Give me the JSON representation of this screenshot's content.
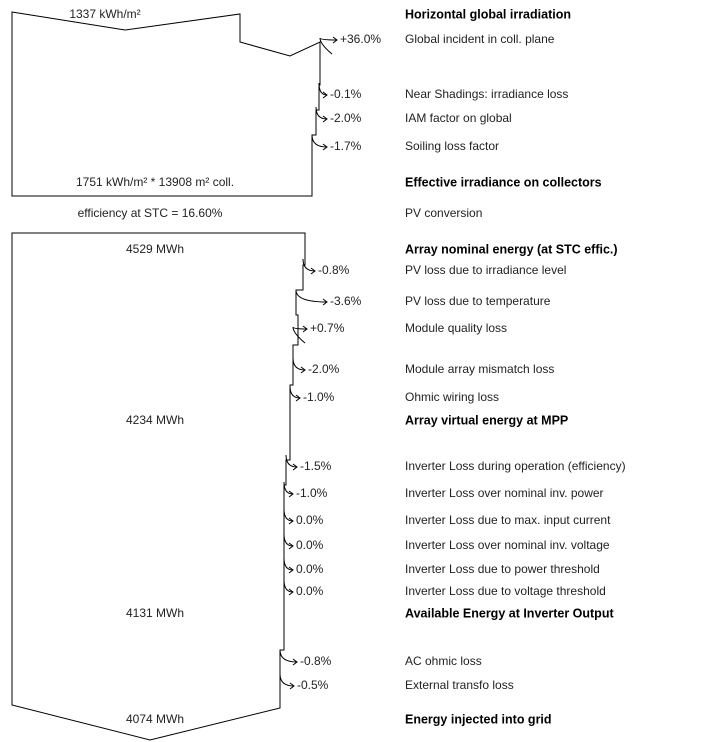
{
  "rows": [
    {
      "value": "1337 kWh/m²",
      "label": "Horizontal global irradiation"
    },
    {
      "value": "+36.0%",
      "label": "Global incident in coll. plane"
    },
    {
      "value": "-0.1%",
      "label": "Near Shadings: irradiance loss"
    },
    {
      "value": "-2.0%",
      "label": "IAM factor on global"
    },
    {
      "value": "-1.7%",
      "label": "Soiling loss factor"
    },
    {
      "value": "1751 kWh/m² * 13908 m² coll.",
      "label": "Effective irradiance on collectors"
    },
    {
      "value": "efficiency at STC = 16.60%",
      "label": "PV conversion"
    },
    {
      "value": "4529 MWh",
      "label": "Array nominal energy (at STC effic.)"
    },
    {
      "value": "-0.8%",
      "label": "PV loss due to irradiance level"
    },
    {
      "value": "-3.6%",
      "label": "PV loss due to temperature"
    },
    {
      "value": "+0.7%",
      "label": "Module quality loss"
    },
    {
      "value": "-2.0%",
      "label": "Module array mismatch loss"
    },
    {
      "value": "-1.0%",
      "label": "Ohmic wiring loss"
    },
    {
      "value": "4234 MWh",
      "label": "Array virtual energy at MPP"
    },
    {
      "value": "-1.5%",
      "label": "Inverter Loss during operation (efficiency)"
    },
    {
      "value": "-1.0%",
      "label": "Inverter Loss over nominal inv. power"
    },
    {
      "value": "0.0%",
      "label": "Inverter Loss due to max. input current"
    },
    {
      "value": "0.0%",
      "label": "Inverter Loss over nominal inv. voltage"
    },
    {
      "value": "0.0%",
      "label": "Inverter Loss due to power threshold"
    },
    {
      "value": "0.0%",
      "label": "Inverter Loss due to voltage threshold"
    },
    {
      "value": "4131 MWh",
      "label": "Available Energy at Inverter Output"
    },
    {
      "value": "-0.8%",
      "label": "AC ohmic loss"
    },
    {
      "value": "-0.5%",
      "label": "External transfo loss"
    },
    {
      "value": "4074 MWh",
      "label": "Energy injected into grid"
    }
  ]
}
